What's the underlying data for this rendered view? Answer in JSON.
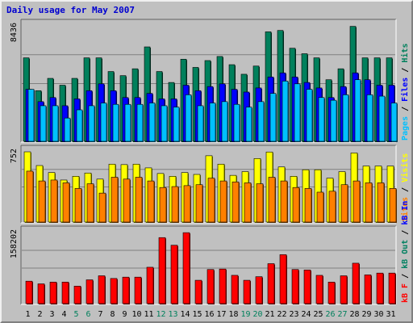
{
  "title": "Daily usage for May 2007",
  "colors": {
    "background": "#c0c0c0",
    "hits": "#00805c",
    "files": "#0000ff",
    "pages": "#00c0ff",
    "visits": "#ffff00",
    "sites": "#ff8000",
    "kbin": "#ff0000"
  },
  "chart_data": [
    {
      "type": "bar",
      "panel": "top",
      "ymax_label": "8436",
      "ymax": 8436,
      "legend": [
        "Pages",
        "Files",
        "Hits"
      ],
      "grid": true,
      "categories": [
        "1",
        "2",
        "3",
        "4",
        "5",
        "6",
        "7",
        "8",
        "9",
        "10",
        "11",
        "12",
        "13",
        "14",
        "15",
        "16",
        "17",
        "18",
        "19",
        "20",
        "21",
        "22",
        "23",
        "24",
        "25",
        "26",
        "27",
        "28",
        "29",
        "30",
        "31"
      ],
      "weekend_days": [
        "5",
        "6",
        "12",
        "13",
        "19",
        "20",
        "26",
        "27"
      ],
      "series": [
        {
          "name": "Hits",
          "values": [
            6100,
            3700,
            4600,
            4100,
            4600,
            6100,
            6100,
            5100,
            4800,
            5300,
            6900,
            5100,
            4300,
            6000,
            5400,
            5900,
            6200,
            5600,
            4900,
            5500,
            8000,
            8100,
            6800,
            6400,
            6100,
            4500,
            5300,
            8400,
            6100,
            6100,
            6100
          ]
        },
        {
          "name": "Files",
          "values": [
            3800,
            2900,
            3200,
            2600,
            3100,
            3700,
            4200,
            3700,
            3200,
            3200,
            3500,
            3100,
            3100,
            4100,
            3700,
            4000,
            4200,
            3800,
            3600,
            3900,
            4700,
            5000,
            4700,
            4300,
            3900,
            3200,
            4000,
            5000,
            4500,
            4100,
            4100
          ]
        },
        {
          "name": "Pages",
          "values": [
            3800,
            2600,
            2600,
            1700,
            2300,
            2600,
            2800,
            2700,
            2700,
            2700,
            2800,
            2600,
            2500,
            3400,
            2600,
            2800,
            2900,
            2700,
            2500,
            2900,
            3500,
            4400,
            4200,
            3800,
            3200,
            3000,
            3400,
            4500,
            3400,
            3300,
            2800
          ]
        }
      ]
    },
    {
      "type": "bar",
      "panel": "middle",
      "ymax_label": "752",
      "ymax": 752,
      "legend": [
        "Sites",
        "Visits"
      ],
      "grid": true,
      "categories": [
        "1",
        "2",
        "3",
        "4",
        "5",
        "6",
        "7",
        "8",
        "9",
        "10",
        "11",
        "12",
        "13",
        "14",
        "15",
        "16",
        "17",
        "18",
        "19",
        "20",
        "21",
        "22",
        "23",
        "24",
        "25",
        "26",
        "27",
        "28",
        "29",
        "30",
        "31"
      ],
      "series": [
        {
          "name": "Visits",
          "values": [
            752,
            605,
            530,
            450,
            490,
            525,
            460,
            620,
            615,
            620,
            580,
            520,
            490,
            530,
            510,
            710,
            620,
            500,
            540,
            680,
            750,
            590,
            490,
            560,
            560,
            470,
            540,
            740,
            600,
            600,
            600
          ]
        },
        {
          "name": "Sites",
          "values": [
            545,
            440,
            450,
            420,
            360,
            410,
            310,
            480,
            460,
            480,
            440,
            370,
            380,
            390,
            400,
            470,
            440,
            430,
            420,
            410,
            480,
            440,
            370,
            360,
            320,
            330,
            400,
            440,
            420,
            420,
            360
          ]
        }
      ]
    },
    {
      "type": "bar",
      "panel": "bottom",
      "ymax_label": "158202",
      "ymax": 158202,
      "legend": [
        "kB F",
        "kB Out",
        "kB In"
      ],
      "grid": true,
      "categories": [
        "1",
        "2",
        "3",
        "4",
        "5",
        "6",
        "7",
        "8",
        "9",
        "10",
        "11",
        "12",
        "13",
        "14",
        "15",
        "16",
        "17",
        "18",
        "19",
        "20",
        "21",
        "22",
        "23",
        "24",
        "25",
        "26",
        "27",
        "28",
        "29",
        "30",
        "31"
      ],
      "series": [
        {
          "name": "kB F",
          "values": [
            50000,
            44000,
            48000,
            48000,
            39000,
            53000,
            62000,
            56000,
            59000,
            59000,
            81000,
            147000,
            130000,
            158000,
            52000,
            76000,
            77000,
            63000,
            52000,
            60000,
            89000,
            109000,
            76000,
            75000,
            63000,
            48000,
            62000,
            90000,
            64000,
            68000,
            68000
          ]
        }
      ]
    }
  ]
}
